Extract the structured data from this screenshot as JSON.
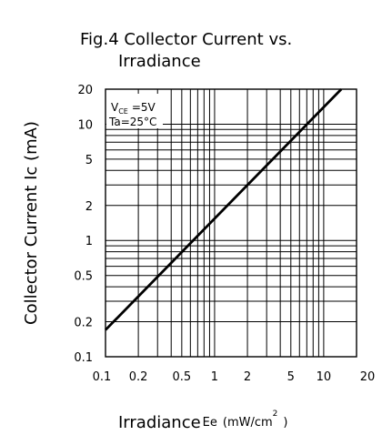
{
  "chart_data": {
    "type": "line",
    "title_line1": "Fig.4 Collector Current vs.",
    "title_line2": "Irradiance",
    "xlabel_main": "Irradiance",
    "xlabel_sub": "Ee",
    "xlabel_unit": "(mW/cm",
    "xlabel_unit_sup": "2",
    "xlabel_unit_close": ")",
    "ylabel": "Collector Current Ic (mA)",
    "x_scale": "log",
    "y_scale": "log",
    "xlim": [
      0.1,
      20
    ],
    "ylim": [
      0.1,
      20
    ],
    "grid": true,
    "x_ticks": [
      0.1,
      0.2,
      0.5,
      1,
      2,
      5,
      10,
      20
    ],
    "x_tick_labels": [
      "0.1",
      "0.2",
      "0.5",
      "1",
      "2",
      "5",
      "10",
      "20"
    ],
    "y_ticks": [
      0.1,
      0.2,
      0.5,
      1,
      2,
      5,
      10,
      20
    ],
    "y_tick_labels": [
      "0.1",
      "0.2",
      "0.5",
      "1",
      "2",
      "5",
      "10",
      "20"
    ],
    "annotation_line1_prefix": "V",
    "annotation_line1_sub": "CE",
    "annotation_line1_value": "=5V",
    "annotation_line2": "Ta=25°C",
    "series": [
      {
        "x": [
          0.1,
          14.5
        ],
        "y": [
          0.17,
          20
        ]
      }
    ]
  }
}
